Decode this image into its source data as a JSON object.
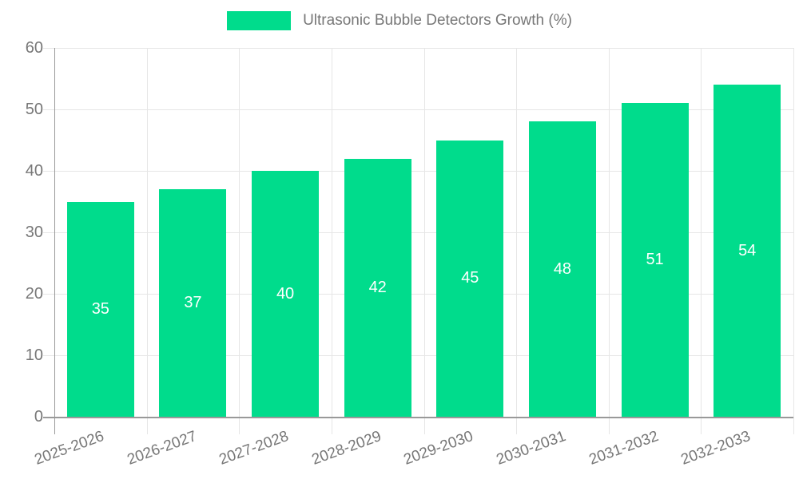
{
  "chart_data": {
    "type": "bar",
    "title": "Ultrasonic Bubble Detectors Growth (%)",
    "categories": [
      "2025-2026",
      "2026-2027",
      "2027-2028",
      "2028-2029",
      "2029-2030",
      "2030-2031",
      "2031-2032",
      "2032-2033"
    ],
    "series": [
      {
        "name": "Ultrasonic Bubble Detectors Growth (%)",
        "values": [
          35,
          37,
          40,
          42,
          45,
          48,
          51,
          54
        ]
      }
    ],
    "xlabel": "",
    "ylabel": "",
    "ylim": [
      0,
      60
    ],
    "ytick_step": 10,
    "yticks": [
      0,
      10,
      20,
      30,
      40,
      50,
      60
    ],
    "grid": true,
    "legend_position": "top-center",
    "x_label_rotation_deg": -20,
    "value_labels": "centered-inside-bars"
  },
  "colors": {
    "bar": "#00DC8C",
    "value_label": "#ffffff",
    "axis_text": "#777777",
    "grid_line": "#e6e6e6",
    "axis_line": "#999999",
    "background": "#ffffff"
  }
}
